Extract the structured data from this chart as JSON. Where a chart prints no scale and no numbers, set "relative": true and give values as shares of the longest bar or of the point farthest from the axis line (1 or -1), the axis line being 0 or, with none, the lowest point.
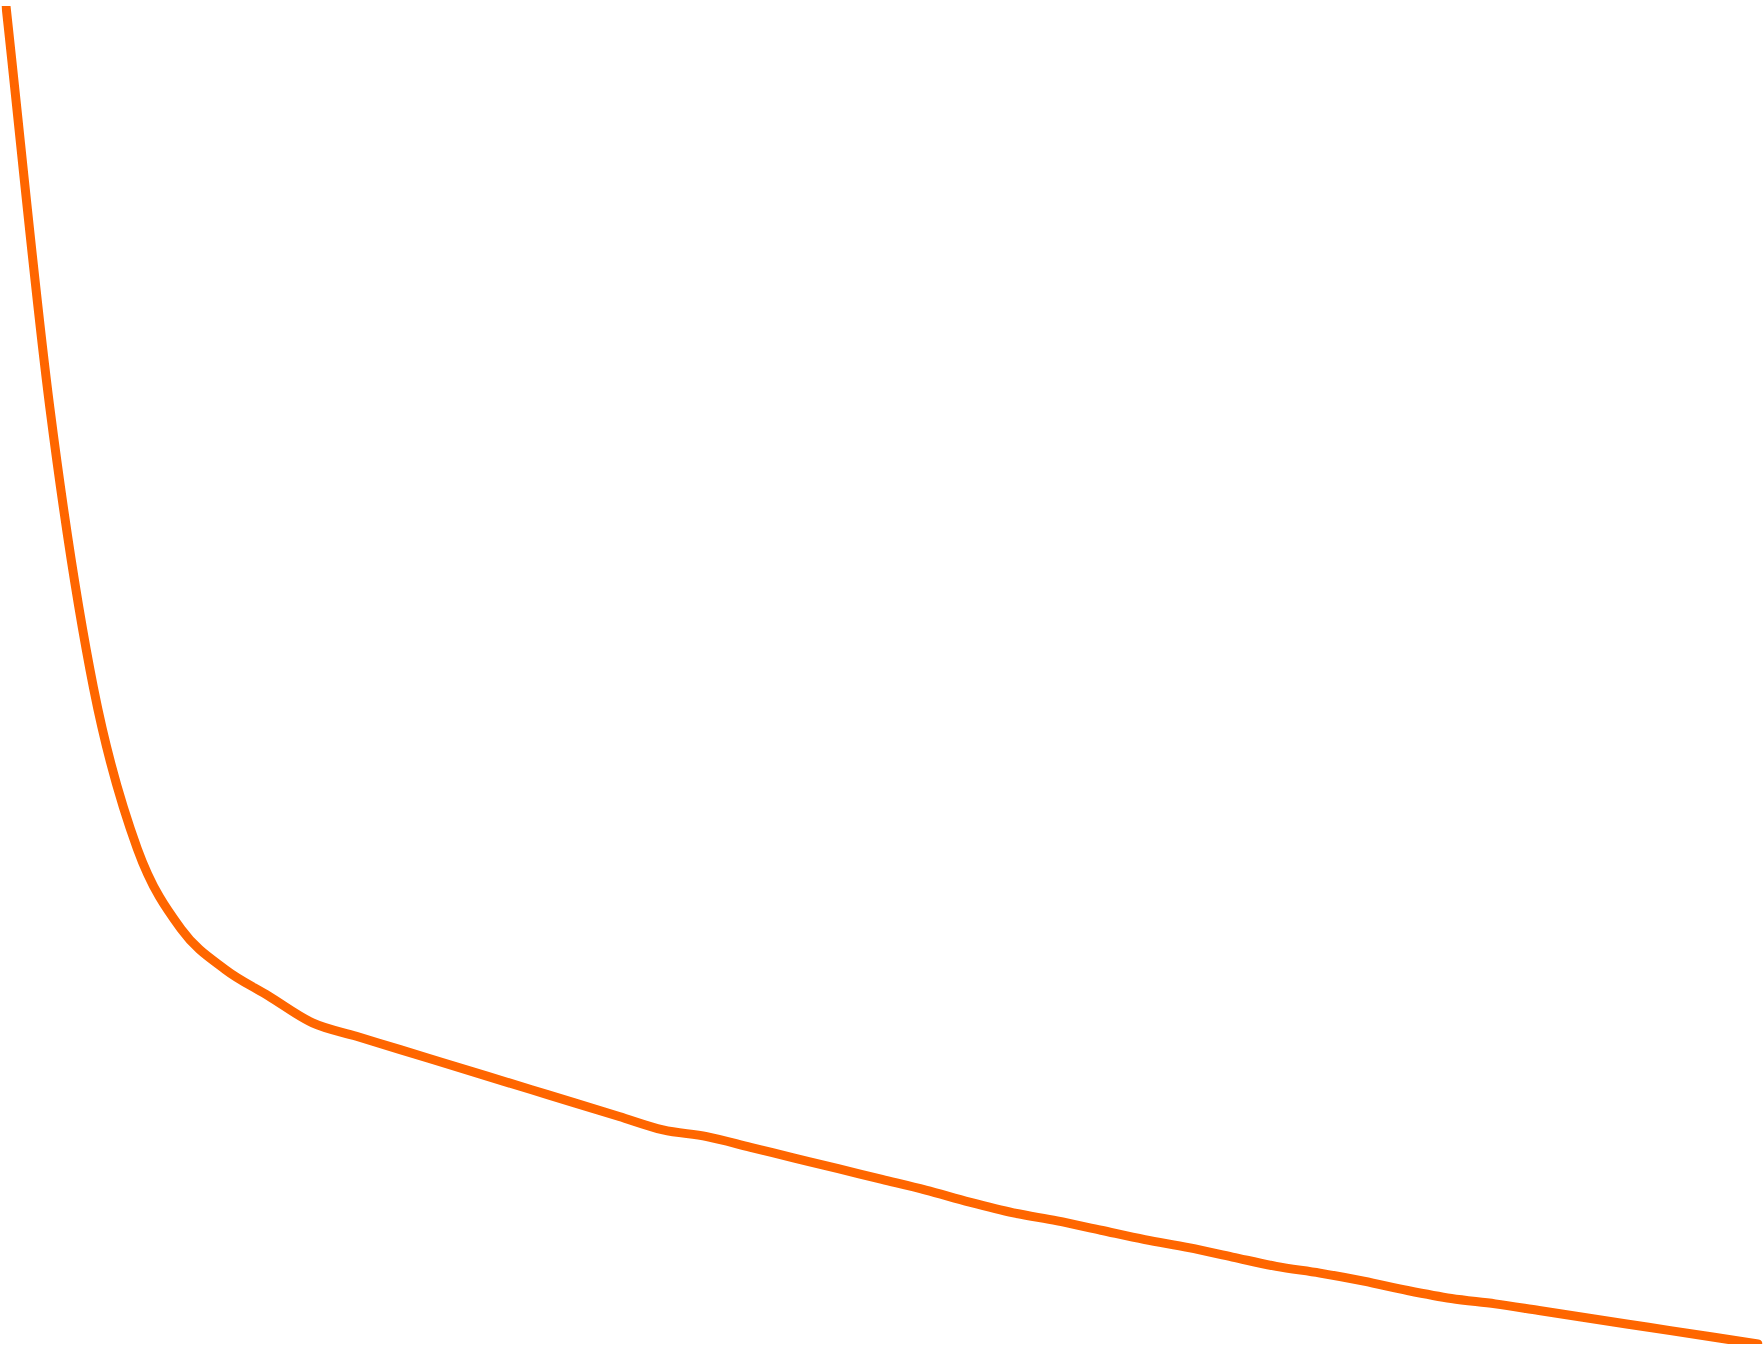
{
  "chart_data": {
    "type": "line",
    "relative": true,
    "color": "#ff6600",
    "marker": "none",
    "categories": [
      null,
      null,
      null,
      null,
      null,
      null,
      null,
      null,
      null,
      null,
      null,
      null,
      null,
      null,
      null,
      null,
      null,
      null,
      null,
      null,
      null,
      null,
      null,
      null,
      null,
      null,
      null,
      null,
      null,
      null,
      null,
      null,
      null,
      null,
      null,
      null,
      null,
      null,
      null,
      null,
      null
    ],
    "values": [
      1,
      0.7,
      0.49,
      0.37,
      0.31,
      0.28,
      0.26,
      0.24,
      0.23,
      0.22,
      0.21,
      0.2,
      0.19,
      0.18,
      0.17,
      0.16,
      0.155,
      0.147,
      0.139,
      0.131,
      0.123,
      0.115,
      0.106,
      0.098,
      0.092,
      0.085,
      0.078,
      0.072,
      0.065,
      0.058,
      0.053,
      0.047,
      0.04,
      0.034,
      0.03,
      0.025,
      0.02,
      0.015,
      0.01,
      0.005,
      0
    ]
  }
}
